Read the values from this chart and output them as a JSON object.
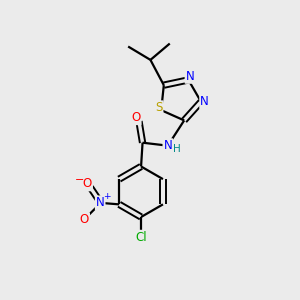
{
  "background_color": "#ebebeb",
  "bond_color": "#000000",
  "atom_colors": {
    "N": "#0000ff",
    "O": "#ff0000",
    "S": "#b8a000",
    "Cl": "#00aa00",
    "C": "#000000",
    "H": "#008888"
  },
  "figsize": [
    3.0,
    3.0
  ],
  "dpi": 100
}
